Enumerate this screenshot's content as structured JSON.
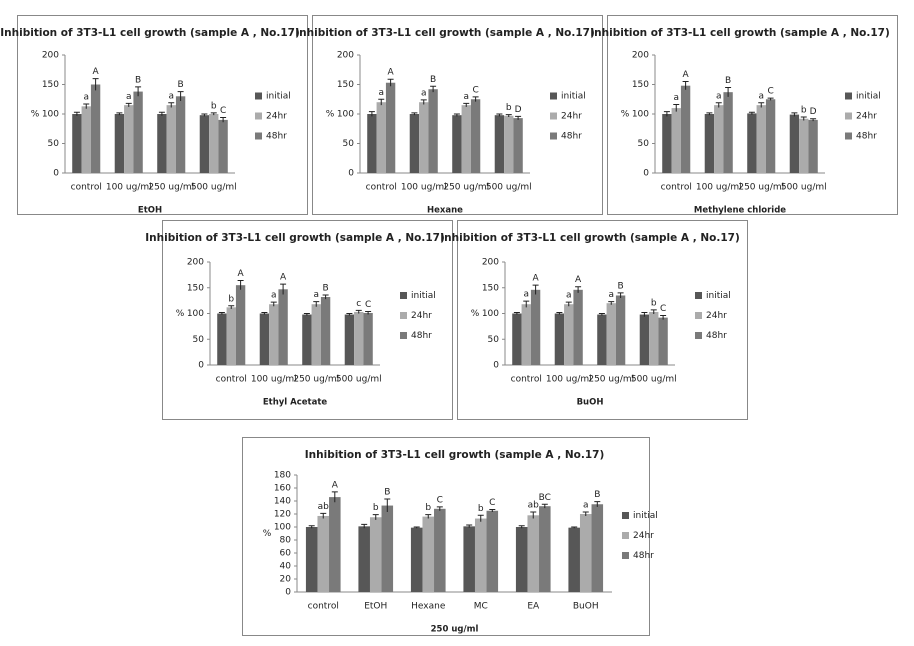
{
  "chart_data": [
    {
      "type": "bar",
      "title": "Inhibition of 3T3-L1 cell growth (sample A , No.17)",
      "x_label": "EtOH",
      "y_label": "%",
      "categories": [
        "control",
        "100 ug/ml",
        "250 ug/ml",
        "500 ug/ml"
      ],
      "ylim": [
        0,
        200
      ],
      "yticks": [
        0,
        50,
        100,
        150,
        200
      ],
      "legend": "right",
      "series": [
        {
          "name": "initial",
          "color": "#575757",
          "values": [
            100,
            100,
            100,
            98
          ],
          "errors": [
            3,
            2,
            3,
            2
          ]
        },
        {
          "name": "24hr",
          "color": "#ababab",
          "values": [
            113,
            115,
            115,
            100
          ],
          "errors": [
            4,
            3,
            4,
            2
          ],
          "letters": [
            "a",
            "a",
            "a",
            "b"
          ]
        },
        {
          "name": "48hr",
          "color": "#7a7a7a",
          "values": [
            150,
            138,
            130,
            90
          ],
          "errors": [
            10,
            8,
            8,
            4
          ],
          "letters": [
            "A",
            "B",
            "B",
            "C"
          ]
        }
      ]
    },
    {
      "type": "bar",
      "title": "Inhibition of 3T3-L1 cell growth (sample A , No.17)",
      "x_label": "Hexane",
      "y_label": "%",
      "categories": [
        "control",
        "100 ug/ml",
        "250 ug/ml",
        "500 ug/ml"
      ],
      "ylim": [
        0,
        200
      ],
      "yticks": [
        0,
        50,
        100,
        150,
        200
      ],
      "legend": "right",
      "series": [
        {
          "name": "initial",
          "color": "#575757",
          "values": [
            100,
            100,
            98,
            98
          ],
          "errors": [
            4,
            2,
            2,
            2
          ]
        },
        {
          "name": "24hr",
          "color": "#ababab",
          "values": [
            120,
            120,
            115,
            97
          ],
          "errors": [
            5,
            4,
            3,
            2
          ],
          "letters": [
            "a",
            "a",
            "a",
            "b"
          ]
        },
        {
          "name": "48hr",
          "color": "#7a7a7a",
          "values": [
            153,
            142,
            125,
            93
          ],
          "errors": [
            6,
            5,
            4,
            3
          ],
          "letters": [
            "A",
            "B",
            "C",
            "D"
          ]
        }
      ]
    },
    {
      "type": "bar",
      "title": "Inhibition of 3T3-L1 cell growth (sample A , No.17)",
      "x_label": "Methylene chloride",
      "y_label": "%",
      "categories": [
        "control",
        "100 ug/ml",
        "250 ug/ml",
        "500 ug/ml"
      ],
      "ylim": [
        0,
        200
      ],
      "yticks": [
        0,
        50,
        100,
        150,
        200
      ],
      "legend": "right",
      "series": [
        {
          "name": "initial",
          "color": "#575757",
          "values": [
            100,
            100,
            101,
            99
          ],
          "errors": [
            4,
            2,
            2,
            3
          ]
        },
        {
          "name": "24hr",
          "color": "#ababab",
          "values": [
            110,
            115,
            115,
            92
          ],
          "errors": [
            6,
            4,
            4,
            3
          ],
          "letters": [
            "a",
            "a",
            "a",
            "b"
          ]
        },
        {
          "name": "48hr",
          "color": "#7a7a7a",
          "values": [
            148,
            137,
            125,
            90
          ],
          "errors": [
            7,
            8,
            2,
            2
          ],
          "letters": [
            "A",
            "B",
            "C",
            "D"
          ]
        }
      ]
    },
    {
      "type": "bar",
      "title": "Inhibition of 3T3-L1 cell growth (sample A , No.17)",
      "x_label": "Ethyl Acetate",
      "y_label": "%",
      "categories": [
        "control",
        "100 ug/ml",
        "250 ug/ml",
        "500 ug/ml"
      ],
      "ylim": [
        0,
        200
      ],
      "yticks": [
        0,
        50,
        100,
        150,
        200
      ],
      "legend": "right",
      "series": [
        {
          "name": "initial",
          "color": "#575757",
          "values": [
            100,
            100,
            98,
            98
          ],
          "errors": [
            2,
            2,
            2,
            2
          ]
        },
        {
          "name": "24hr",
          "color": "#ababab",
          "values": [
            112,
            118,
            118,
            103
          ],
          "errors": [
            3,
            4,
            5,
            3
          ],
          "letters": [
            "b",
            "a",
            "a",
            "c"
          ]
        },
        {
          "name": "48hr",
          "color": "#7a7a7a",
          "values": [
            155,
            147,
            132,
            101
          ],
          "errors": [
            9,
            10,
            4,
            3
          ],
          "letters": [
            "A",
            "A",
            "B",
            "C"
          ]
        }
      ]
    },
    {
      "type": "bar",
      "title": "Inhibition of 3T3-L1 cell growth (sample A , No.17)",
      "x_label": "BuOH",
      "y_label": "%",
      "categories": [
        "control",
        "100 ug/ml",
        "250 ug/ml",
        "500 ug/ml"
      ],
      "ylim": [
        0,
        200
      ],
      "yticks": [
        0,
        50,
        100,
        150,
        200
      ],
      "legend": "right",
      "series": [
        {
          "name": "initial",
          "color": "#575757",
          "values": [
            100,
            100,
            98,
            98
          ],
          "errors": [
            2,
            2,
            2,
            4
          ]
        },
        {
          "name": "24hr",
          "color": "#ababab",
          "values": [
            118,
            118,
            120,
            103
          ],
          "errors": [
            6,
            4,
            3,
            4
          ],
          "letters": [
            "a",
            "a",
            "a",
            "b"
          ]
        },
        {
          "name": "48hr",
          "color": "#7a7a7a",
          "values": [
            146,
            146,
            135,
            92
          ],
          "errors": [
            9,
            6,
            5,
            4
          ],
          "letters": [
            "A",
            "A",
            "B",
            "C"
          ]
        }
      ]
    },
    {
      "type": "bar",
      "title": "Inhibition of 3T3-L1 cell growth (sample A , No.17)",
      "x_label": "250 ug/ml",
      "y_label": "%",
      "categories": [
        "control",
        "EtOH",
        "Hexane",
        "MC",
        "EA",
        "BuOH"
      ],
      "ylim": [
        0,
        180
      ],
      "yticks": [
        0,
        20,
        40,
        60,
        80,
        100,
        120,
        140,
        160,
        180
      ],
      "legend": "right",
      "series": [
        {
          "name": "initial",
          "color": "#575757",
          "values": [
            100,
            101,
            99,
            101,
            100,
            99
          ],
          "errors": [
            2,
            3,
            1,
            2,
            2,
            1
          ]
        },
        {
          "name": "24hr",
          "color": "#ababab",
          "values": [
            117,
            115,
            116,
            113,
            118,
            120
          ],
          "errors": [
            4,
            4,
            3,
            5,
            5,
            3
          ],
          "letters": [
            "ab",
            "b",
            "b",
            "b",
            "ab",
            "a"
          ]
        },
        {
          "name": "48hr",
          "color": "#7a7a7a",
          "values": [
            146,
            133,
            128,
            125,
            132,
            135
          ],
          "errors": [
            8,
            10,
            3,
            2,
            3,
            4
          ],
          "letters": [
            "A",
            "B",
            "C",
            "C",
            "BC",
            "B"
          ]
        }
      ]
    }
  ]
}
